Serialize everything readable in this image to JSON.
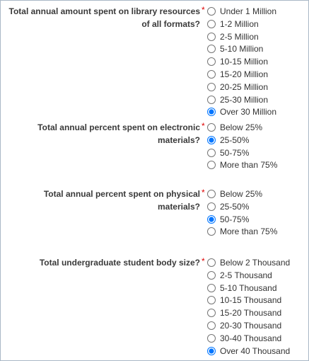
{
  "questions": [
    {
      "label": "Total annual amount spent on library resources of all formats?",
      "required_mark": "*",
      "options": [
        "Under 1 Million",
        "1-2 Million",
        "2-5 Million",
        "5-10 Million",
        "10-15 Million",
        "15-20 Million",
        "20-25 Million",
        "25-30 Million",
        "Over 30 Million"
      ],
      "selected": 8
    },
    {
      "label": "Total annual percent spent on electronic materials?",
      "required_mark": "*",
      "options": [
        "Below 25%",
        "25-50%",
        "50-75%",
        "More than 75%"
      ],
      "selected": 1
    },
    {
      "label": "Total annual percent spent on physical materials?",
      "required_mark": "*",
      "options": [
        "Below 25%",
        "25-50%",
        "50-75%",
        "More than 75%"
      ],
      "selected": 2
    },
    {
      "label": "Total undergraduate student body size?",
      "required_mark": "*",
      "options": [
        "Below 2 Thousand",
        "2-5 Thousand",
        "5-10 Thousand",
        "10-15 Thousand",
        "15-20 Thousand",
        "20-30 Thousand",
        "30-40 Thousand",
        "Over 40 Thousand"
      ],
      "selected": 7
    }
  ]
}
